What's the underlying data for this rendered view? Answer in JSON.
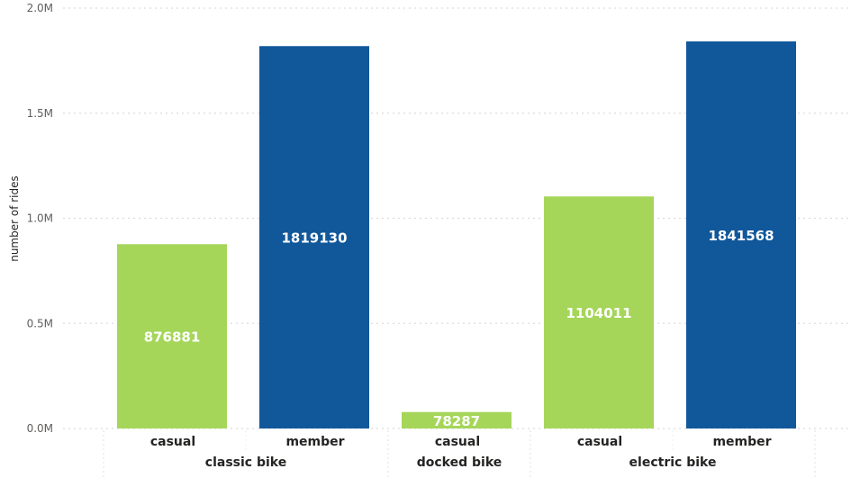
{
  "chart_data": {
    "type": "bar",
    "ylabel": "number of rides",
    "ylim": [
      0,
      2000000
    ],
    "yticks": [
      {
        "value": 0,
        "label": "0.0M"
      },
      {
        "value": 500000,
        "label": "0.5M"
      },
      {
        "value": 1000000,
        "label": "1.0M"
      },
      {
        "value": 1500000,
        "label": "1.5M"
      },
      {
        "value": 2000000,
        "label": "2.0M"
      }
    ],
    "groups": [
      {
        "name": "classic bike",
        "bars": [
          {
            "category": "casual",
            "value": 876881,
            "label": "876881",
            "color": "#a5d65a"
          },
          {
            "category": "member",
            "value": 1819130,
            "label": "1819130",
            "color": "#11589b"
          }
        ]
      },
      {
        "name": "docked bike",
        "bars": [
          {
            "category": "casual",
            "value": 78287,
            "label": "78287",
            "color": "#a5d65a"
          }
        ]
      },
      {
        "name": "electric bike",
        "bars": [
          {
            "category": "casual",
            "value": 1104011,
            "label": "1104011",
            "color": "#a5d65a"
          },
          {
            "category": "member",
            "value": 1841568,
            "label": "1841568",
            "color": "#11589b"
          }
        ]
      }
    ],
    "grid": true
  }
}
